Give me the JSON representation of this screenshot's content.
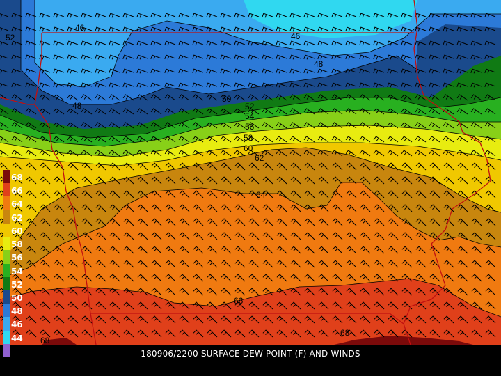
{
  "caption": "180906/2200 SURFACE DEW POINT (F) AND WINDS",
  "legend": [
    {
      "label": "68",
      "color": "#7b0a0a"
    },
    {
      "label": "66",
      "color": "#e0401a"
    },
    {
      "label": "64",
      "color": "#f07a10"
    },
    {
      "label": "62",
      "color": "#c8860e"
    },
    {
      "label": "60",
      "color": "#f0c800"
    },
    {
      "label": "58",
      "color": "#e8ec10"
    },
    {
      "label": "56",
      "color": "#88d018"
    },
    {
      "label": "54",
      "color": "#28b020"
    },
    {
      "label": "52",
      "color": "#107a14"
    },
    {
      "label": "50",
      "color": "#1a4a8c"
    },
    {
      "label": "48",
      "color": "#2c7ad8"
    },
    {
      "label": "46",
      "color": "#3aaaf0"
    },
    {
      "label": "44",
      "color": "#30d8f0"
    },
    {
      "label": "",
      "color": "#9060d0"
    }
  ],
  "contour_labels": [
    "46",
    "46",
    "48",
    "52",
    "48",
    "50",
    "52",
    "54",
    "56",
    "58",
    "60",
    "62",
    "64",
    "66",
    "68",
    "68"
  ],
  "colors": {
    "state_border": "#c01010",
    "wind_barb": "#000000",
    "contour_line": "#000000"
  }
}
